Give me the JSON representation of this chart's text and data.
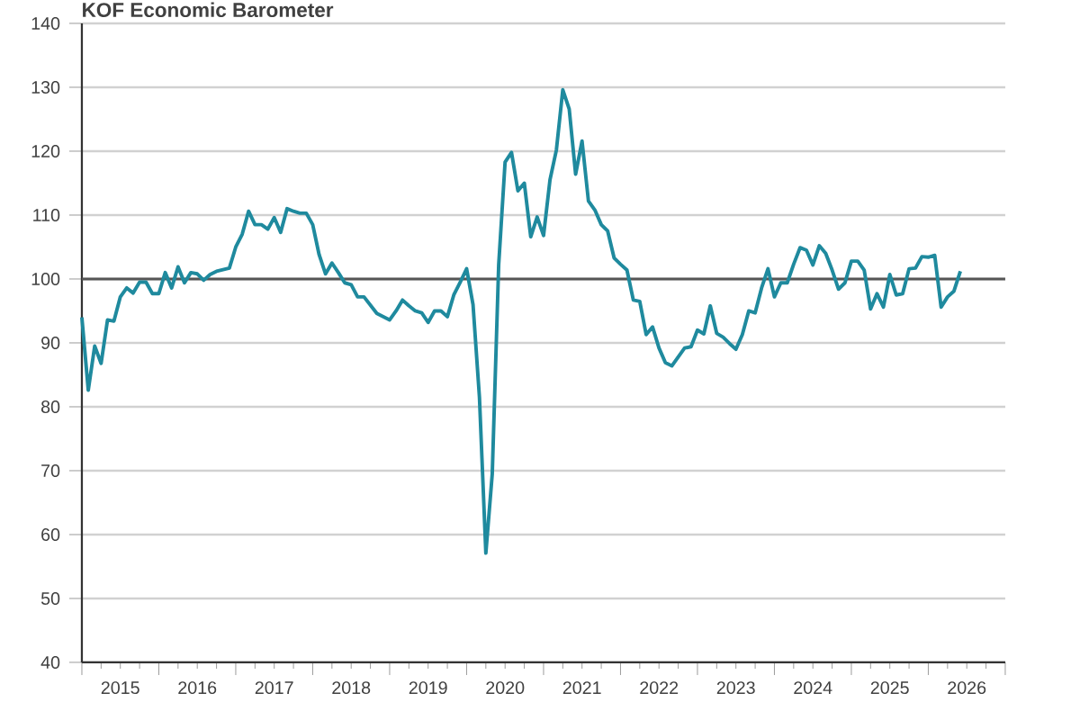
{
  "chart_data": {
    "type": "line",
    "title": "KOF Economic Barometer",
    "x": [
      "2015-01",
      "2015-02",
      "2015-03",
      "2015-04",
      "2015-05",
      "2015-06",
      "2015-07",
      "2015-08",
      "2015-09",
      "2015-10",
      "2015-11",
      "2015-12",
      "2016-01",
      "2016-02",
      "2016-03",
      "2016-04",
      "2016-05",
      "2016-06",
      "2016-07",
      "2016-08",
      "2016-09",
      "2016-10",
      "2016-12",
      "2017-01",
      "2017-02",
      "2017-03",
      "2017-04",
      "2017-05",
      "2017-06",
      "2017-07",
      "2017-08",
      "2017-09",
      "2017-10",
      "2017-11",
      "2017-12",
      "2018-01",
      "2018-02",
      "2018-03",
      "2018-04",
      "2018-05",
      "2018-06",
      "2018-07",
      "2018-08",
      "2018-09",
      "2018-11",
      "2019-01",
      "2019-02",
      "2019-03",
      "2019-04",
      "2019-05",
      "2019-06",
      "2019-07",
      "2019-08",
      "2019-09",
      "2019-10",
      "2019-11",
      "2019-12",
      "2020-01",
      "2020-02",
      "2020-03",
      "2020-04",
      "2020-05",
      "2020-06",
      "2020-07",
      "2020-08",
      "2020-09",
      "2020-10",
      "2020-11",
      "2020-12",
      "2021-01",
      "2021-02",
      "2021-03",
      "2021-04",
      "2021-05",
      "2021-06",
      "2021-07",
      "2021-08",
      "2021-09",
      "2021-10",
      "2021-11",
      "2021-12",
      "2022-01",
      "2022-02",
      "2022-03",
      "2022-04",
      "2022-05",
      "2022-06",
      "2022-07",
      "2022-08",
      "2022-09",
      "2022-10",
      "2022-11",
      "2022-12",
      "2023-01",
      "2023-02",
      "2023-03",
      "2023-04",
      "2023-05",
      "2023-06",
      "2023-07",
      "2023-08",
      "2023-09",
      "2023-10",
      "2023-11",
      "2023-12",
      "2024-01",
      "2024-02",
      "2024-03",
      "2024-04",
      "2024-05",
      "2024-06",
      "2024-07",
      "2024-08",
      "2024-09",
      "2024-10",
      "2024-11",
      "2024-12",
      "2025-01",
      "2025-02",
      "2025-03",
      "2025-04",
      "2025-05",
      "2025-06",
      "2025-07",
      "2025-08",
      "2025-09",
      "2025-10",
      "2025-11",
      "2025-12",
      "2026-01",
      "2026-02",
      "2026-03",
      "2026-04",
      "2026-05",
      "2026-06"
    ],
    "series": [
      {
        "color": "#1f8a9e",
        "values": [
          94,
          82.6,
          89.5,
          86.8,
          93.6,
          93.4,
          97.2,
          98.6,
          97.8,
          99.5,
          99.5,
          97.7,
          97.7,
          101,
          98.6,
          101.9,
          99.4,
          101,
          100.8,
          99.8,
          100.7,
          101.2,
          101.7,
          105,
          107,
          110.6,
          108.5,
          108.5,
          107.8,
          109.6,
          107.3,
          111,
          110.6,
          110.3,
          110.3,
          108.5,
          103.8,
          100.8,
          102.5,
          101,
          99.4,
          99.1,
          97.2,
          97.2,
          94.6,
          93.6,
          95,
          96.7,
          95.8,
          95,
          94.7,
          93.2,
          95,
          95,
          94.1,
          97.5,
          99.5,
          101.6,
          96,
          81.5,
          57.1,
          69.5,
          102.2,
          118.3,
          119.8,
          113.8,
          115,
          106.6,
          109.7,
          106.8,
          115.5,
          120.2,
          129.6,
          126.6,
          116.4,
          121.6,
          112.2,
          110.8,
          108.5,
          107.5,
          103.3,
          102.3,
          101.4,
          96.7,
          96.5,
          91.3,
          92.5,
          89.2,
          86.9,
          86.4,
          87.8,
          89.2,
          89.4,
          92,
          91.4,
          95.8,
          91.5,
          90.9,
          89.9,
          89,
          91.3,
          95,
          94.7,
          98.6,
          101.6,
          97.2,
          99.4,
          99.4,
          102.3,
          104.9,
          104.5,
          102.2,
          105.2,
          104,
          101.4,
          98.4,
          99.4,
          102.8,
          102.8,
          101.4,
          95.3,
          97.7,
          95.6,
          100.7,
          97.5,
          97.7,
          101.6,
          101.7,
          103.5,
          103.4,
          103.7,
          95.6,
          97.2,
          98.1,
          101.2
        ]
      }
    ],
    "xlim": [
      "2015-01-01",
      "2027-01-01"
    ],
    "xticks": [
      {
        "value": "2015-01-01",
        "label": null
      },
      {
        "value": "2015-07-01",
        "label": "2015"
      },
      {
        "value": "2016-01-01",
        "label": null
      },
      {
        "value": "2016-07-01",
        "label": "2016"
      },
      {
        "value": "2017-01-01",
        "label": null
      },
      {
        "value": "2017-07-01",
        "label": "2017"
      },
      {
        "value": "2018-01-01",
        "label": null
      },
      {
        "value": "2018-07-01",
        "label": "2018"
      },
      {
        "value": "2019-01-01",
        "label": null
      },
      {
        "value": "2019-07-01",
        "label": "2019"
      },
      {
        "value": "2020-01-01",
        "label": null
      },
      {
        "value": "2020-07-01",
        "label": "2020"
      },
      {
        "value": "2021-01-01",
        "label": null
      },
      {
        "value": "2021-07-01",
        "label": "2021"
      },
      {
        "value": "2022-01-01",
        "label": null
      },
      {
        "value": "2022-07-01",
        "label": "2022"
      },
      {
        "value": "2023-01-01",
        "label": null
      },
      {
        "value": "2023-07-01",
        "label": "2023"
      },
      {
        "value": "2024-01-01",
        "label": null
      },
      {
        "value": "2024-07-01",
        "label": "2024"
      },
      {
        "value": "2025-01-01",
        "label": null
      },
      {
        "value": "2025-07-01",
        "label": "2025"
      },
      {
        "value": "2026-01-01",
        "label": null
      },
      {
        "value": "2026-07-01",
        "label": "2026"
      },
      {
        "value": "2027-01-01",
        "label": null
      }
    ],
    "ylim": [
      40,
      140
    ],
    "yticks": [
      40,
      50,
      60,
      70,
      80,
      90,
      100,
      110,
      120,
      130,
      140
    ],
    "grid": "y",
    "ref_lines": [
      {
        "axis": "y",
        "value": 100,
        "color": "#555555"
      }
    ],
    "line_style": "solid"
  }
}
